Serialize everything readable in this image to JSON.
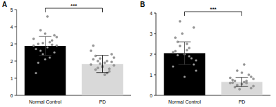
{
  "chart_data": [
    {
      "type": "bar",
      "title": "A",
      "categories": [
        "Normal Control",
        "PD"
      ],
      "values": [
        2.88,
        1.83
      ],
      "errors": [
        0.55,
        0.5
      ],
      "colors": [
        "#000000",
        "#d9d9d9"
      ],
      "ylim": [
        0,
        5
      ],
      "yticks": [
        0,
        1,
        2,
        3,
        4,
        5
      ],
      "annotation": "***",
      "points": [
        [
          2.9,
          3.1,
          2.6,
          3.4,
          2.8,
          3.0,
          2.5,
          3.6,
          2.7,
          3.2,
          2.4,
          3.3,
          2.2,
          3.8,
          2.9,
          4.6,
          1.9,
          3.5,
          2.1,
          1.3,
          2.95,
          3.05
        ],
        [
          1.8,
          2.0,
          1.6,
          2.2,
          1.9,
          1.5,
          2.4,
          1.7,
          2.1,
          1.4,
          1.85,
          2.6,
          1.3,
          2.0,
          1.75,
          1.2,
          2.3,
          1.95,
          1.65,
          2.9,
          1.55,
          2.15
        ]
      ]
    },
    {
      "type": "bar",
      "title": "B",
      "categories": [
        "Normal Control",
        "PD"
      ],
      "values": [
        2.05,
        0.65
      ],
      "errors": [
        0.55,
        0.22
      ],
      "colors": [
        "#000000",
        "#d9d9d9"
      ],
      "ylim": [
        0,
        4
      ],
      "yticks": [
        0,
        1,
        2,
        3,
        4
      ],
      "annotation": "***",
      "points": [
        [
          2.1,
          1.9,
          2.4,
          1.7,
          2.2,
          2.6,
          1.5,
          2.0,
          2.8,
          1.8,
          3.0,
          1.4,
          2.3,
          3.6,
          1.2,
          2.5,
          1.95,
          3.3,
          0.9,
          2.15
        ],
        [
          0.6,
          0.7,
          0.5,
          0.8,
          0.65,
          0.4,
          0.9,
          0.55,
          0.75,
          1.0,
          0.3,
          0.85,
          0.6,
          1.2,
          0.45,
          1.5,
          0.7,
          0.35,
          1.1,
          0.62
        ]
      ]
    }
  ]
}
